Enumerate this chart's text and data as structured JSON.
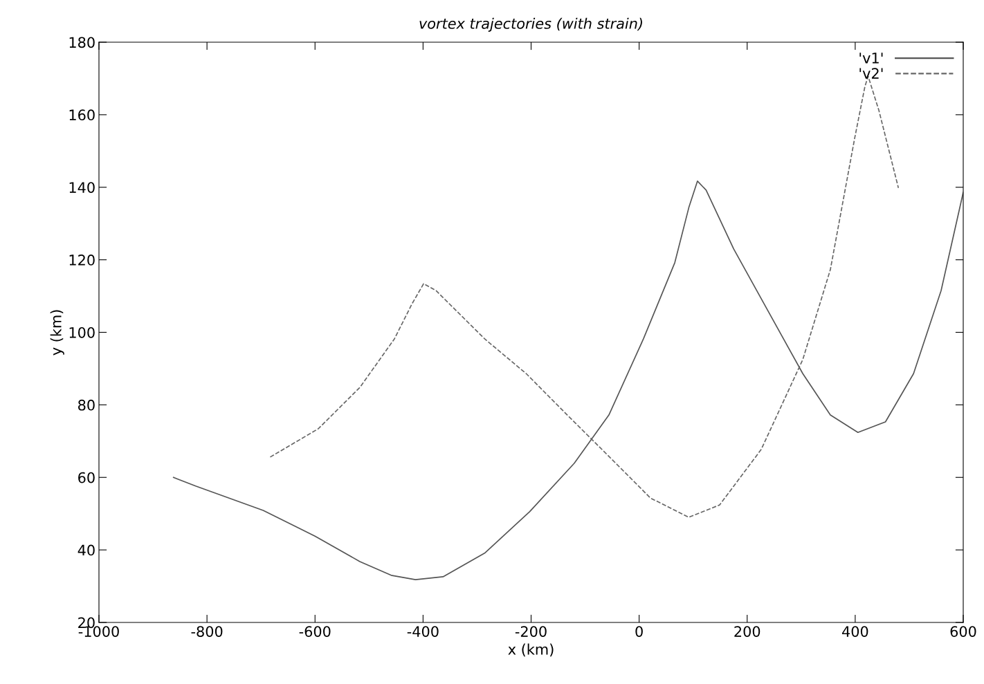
{
  "chart_data": {
    "type": "line",
    "title": "vortex trajectories (with strain)",
    "xlabel": "x (km)",
    "ylabel": "y (km)",
    "xlim": [
      -1000,
      600
    ],
    "xticks": [
      -1000,
      -800,
      -600,
      -400,
      -200,
      0,
      200,
      400,
      600
    ],
    "ylim": [
      20,
      180
    ],
    "yticks": [
      20,
      40,
      60,
      80,
      100,
      120,
      140,
      160,
      180
    ],
    "grid": false,
    "legend": "top right",
    "marker": "none",
    "series": [
      {
        "name": "'v1'",
        "color": "#555555",
        "line_style": "solid",
        "x": [
          -862,
          -821,
          -696,
          -600,
          -517,
          -459,
          -414,
          -363,
          -286,
          -203,
          -120,
          -56,
          8,
          66,
          92,
          108,
          124,
          175,
          239,
          303,
          354,
          405,
          456,
          508,
          559,
          600
        ],
        "values": [
          60,
          57.6,
          50.9,
          43.8,
          36.8,
          33,
          31.8,
          32.6,
          39.1,
          50.5,
          63.9,
          77.2,
          98.2,
          119.2,
          134.4,
          141.7,
          139.2,
          123,
          105.8,
          88.6,
          77.2,
          72.4,
          75.3,
          88.6,
          111.5,
          138.6
        ]
      },
      {
        "name": "'v2'",
        "color": "#666666",
        "line_style": "dashed",
        "x": [
          -683,
          -594,
          -517,
          -453,
          -421,
          -399,
          -376,
          -286,
          -209,
          -133,
          -56,
          21,
          92,
          149,
          226,
          303,
          354,
          399,
          418,
          424,
          444,
          480
        ],
        "values": [
          65.6,
          73.4,
          84.8,
          98.2,
          107.7,
          113.4,
          111.5,
          98.2,
          88.6,
          77.2,
          65.8,
          54.3,
          49,
          52.4,
          67.7,
          92.5,
          117.3,
          153.5,
          167.8,
          170.6,
          161.1,
          139.8
        ]
      }
    ]
  }
}
